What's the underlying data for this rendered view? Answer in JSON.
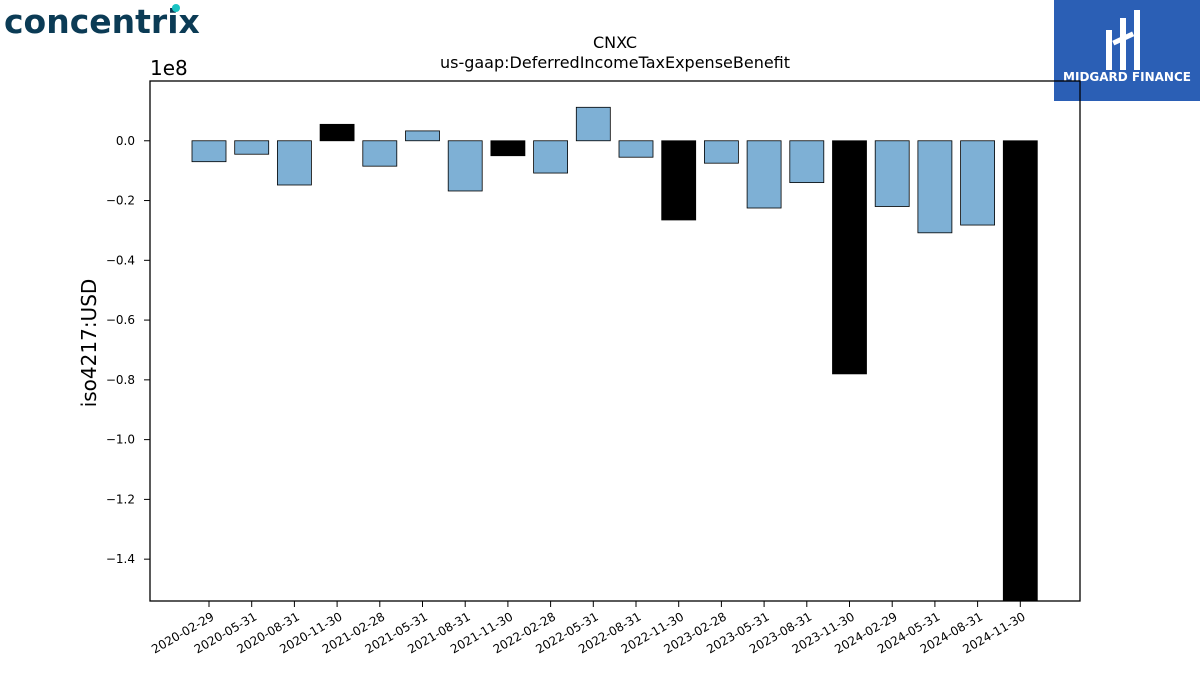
{
  "brand": {
    "left_logo_text": "concentrix",
    "right_logo_text": "MIDGARD FINANCE",
    "left_logo_color": "#0b3b55",
    "left_logo_accent": "#19c3c3",
    "right_logo_bg": "#2b5fb5"
  },
  "chart_data": {
    "type": "bar",
    "title": "CNXC",
    "subtitle": "us-gaap:DeferredIncomeTaxExpenseBenefit",
    "ylabel": "iso4217:USD",
    "xlabel": "",
    "y_offset_label": "1e8",
    "ylim": [
      -1.54,
      0.2
    ],
    "yticks": [
      0.0,
      -0.2,
      -0.4,
      -0.6,
      -0.8,
      -1.0,
      -1.2,
      -1.4
    ],
    "ytick_labels": [
      "0.0",
      "−0.2",
      "−0.4",
      "−0.6",
      "−0.8",
      "−1.0",
      "−1.2",
      "−1.4"
    ],
    "categories": [
      "2020-02-29",
      "2020-05-31",
      "2020-08-31",
      "2020-11-30",
      "2021-02-28",
      "2021-05-31",
      "2021-08-31",
      "2021-11-30",
      "2022-02-28",
      "2022-05-31",
      "2022-08-31",
      "2022-11-30",
      "2023-02-28",
      "2023-05-31",
      "2023-08-31",
      "2023-11-30",
      "2024-02-29",
      "2024-05-31",
      "2024-08-31",
      "2024-11-30"
    ],
    "values": [
      -0.07,
      -0.045,
      -0.148,
      0.055,
      -0.085,
      0.033,
      -0.168,
      -0.05,
      -0.108,
      0.112,
      -0.055,
      -0.265,
      -0.075,
      -0.225,
      -0.14,
      -0.78,
      -0.22,
      -0.308,
      -0.282,
      -1.54
    ],
    "value_units": "1e8 USD",
    "highlight": [
      false,
      false,
      false,
      true,
      false,
      false,
      false,
      true,
      false,
      false,
      false,
      true,
      false,
      false,
      false,
      true,
      false,
      false,
      false,
      true
    ],
    "colors": {
      "normal": "#7eb0d5",
      "highlight": "#000000",
      "edge": "#000000"
    },
    "grid": false,
    "legend": "none"
  }
}
